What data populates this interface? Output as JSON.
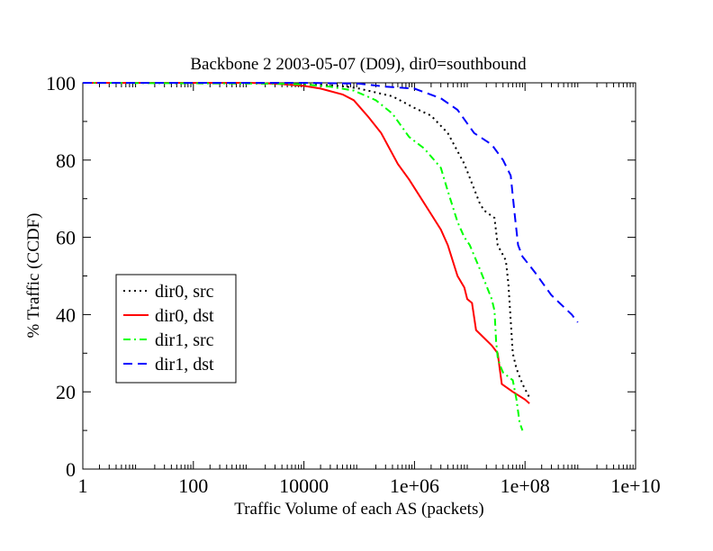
{
  "chart_data": {
    "type": "line",
    "title": "Backbone 2 2003-05-07 (D09), dir0=southbound",
    "xlabel": "Traffic Volume of each AS (packets)",
    "ylabel": "% Traffic (CCDF)",
    "x_scale": "log",
    "xlim": [
      1,
      10000000000
    ],
    "ylim": [
      0,
      100
    ],
    "x_ticks": [
      1,
      100,
      10000,
      1000000,
      100000000,
      10000000000
    ],
    "x_tick_labels": [
      "1",
      "100",
      "10000",
      "1e+06",
      "1e+08",
      "1e+10"
    ],
    "y_ticks": [
      0,
      20,
      40,
      60,
      80,
      100
    ],
    "y_tick_labels": [
      "0",
      "20",
      "40",
      "60",
      "80",
      "100"
    ],
    "grid": false,
    "legend_position": "center-left",
    "series": [
      {
        "name": "dir0, src",
        "color": "#000000",
        "style": "dotted",
        "points": [
          [
            1,
            100
          ],
          [
            1000,
            100
          ],
          [
            5000,
            99.8
          ],
          [
            10000,
            99.6
          ],
          [
            30000,
            99.4
          ],
          [
            60000,
            99
          ],
          [
            100000,
            98.5
          ],
          [
            200000,
            97.5
          ],
          [
            400000,
            96.5
          ],
          [
            1000000,
            93.5
          ],
          [
            2000000,
            91.5
          ],
          [
            4000000,
            87
          ],
          [
            8000000,
            79
          ],
          [
            15000000,
            69
          ],
          [
            18000000,
            67
          ],
          [
            28000000,
            65
          ],
          [
            32000000,
            58
          ],
          [
            45000000,
            54
          ],
          [
            50000000,
            48
          ],
          [
            60000000,
            30
          ],
          [
            70000000,
            26
          ],
          [
            90000000,
            22
          ],
          [
            120000000,
            18.5
          ]
        ]
      },
      {
        "name": "dir0, dst",
        "color": "#ff0000",
        "style": "solid",
        "points": [
          [
            1,
            100
          ],
          [
            1000,
            100
          ],
          [
            3000,
            99.8
          ],
          [
            10000,
            99.2
          ],
          [
            20000,
            98.5
          ],
          [
            50000,
            97
          ],
          [
            80000,
            95.5
          ],
          [
            150000,
            91
          ],
          [
            250000,
            87
          ],
          [
            500000,
            79
          ],
          [
            800000,
            75
          ],
          [
            1200000,
            71
          ],
          [
            2000000,
            66
          ],
          [
            3000000,
            62
          ],
          [
            4000000,
            58
          ],
          [
            6000000,
            50
          ],
          [
            8000000,
            47
          ],
          [
            9000000,
            44
          ],
          [
            11000000,
            43
          ],
          [
            13000000,
            36
          ],
          [
            18000000,
            34
          ],
          [
            25000000,
            32
          ],
          [
            32000000,
            30
          ],
          [
            38000000,
            22
          ],
          [
            60000000,
            20
          ],
          [
            100000000,
            18
          ],
          [
            120000000,
            17
          ]
        ]
      },
      {
        "name": "dir1, src",
        "color": "#00ff00",
        "style": "dashdot",
        "points": [
          [
            1,
            100
          ],
          [
            3000,
            99.8
          ],
          [
            10000,
            99.6
          ],
          [
            30000,
            99
          ],
          [
            80000,
            98
          ],
          [
            200000,
            95.5
          ],
          [
            400000,
            92
          ],
          [
            800000,
            86
          ],
          [
            1500000,
            83
          ],
          [
            3000000,
            78
          ],
          [
            4000000,
            72
          ],
          [
            6000000,
            64
          ],
          [
            8000000,
            60
          ],
          [
            10000000,
            58
          ],
          [
            15000000,
            52
          ],
          [
            25000000,
            44
          ],
          [
            28000000,
            41
          ],
          [
            30000000,
            33
          ],
          [
            32000000,
            29
          ],
          [
            35000000,
            27
          ],
          [
            40000000,
            25
          ],
          [
            60000000,
            23
          ],
          [
            70000000,
            18
          ],
          [
            80000000,
            12
          ],
          [
            90000000,
            10
          ]
        ]
      },
      {
        "name": "dir1, dst",
        "color": "#0000ff",
        "style": "dashed",
        "points": [
          [
            1,
            100
          ],
          [
            10000,
            100
          ],
          [
            100000,
            99.8
          ],
          [
            300000,
            99
          ],
          [
            1000000,
            98.5
          ],
          [
            3000000,
            96
          ],
          [
            6000000,
            93
          ],
          [
            12000000,
            87
          ],
          [
            25000000,
            84
          ],
          [
            40000000,
            80
          ],
          [
            55000000,
            76
          ],
          [
            65000000,
            66
          ],
          [
            75000000,
            58
          ],
          [
            90000000,
            55
          ],
          [
            150000000,
            51
          ],
          [
            300000000,
            45
          ],
          [
            700000000,
            40
          ],
          [
            900000000,
            38
          ]
        ]
      }
    ]
  }
}
